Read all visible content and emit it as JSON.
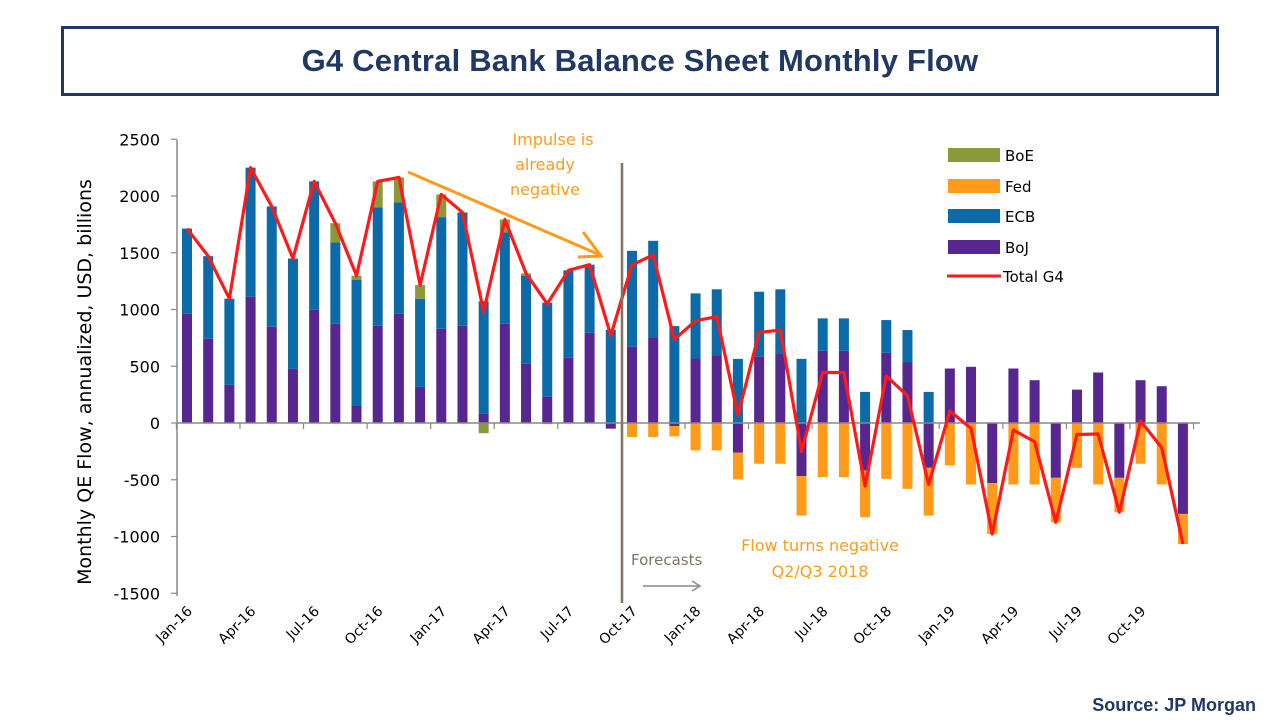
{
  "title": "G4 Central Bank Balance Sheet Monthly Flow",
  "source": "Source: JP Morgan",
  "colors": {
    "BoE": "#8A9A3B",
    "Fed": "#FF9A1A",
    "ECB": "#0D6AA8",
    "BoJ": "#57268F",
    "Total G4": "#FF1A1A",
    "title": "#1F3864",
    "annotation": "#FF9A1A",
    "forecast_line": "#7F7565"
  },
  "chart_data": {
    "type": "bar",
    "stacked": true,
    "title": "G4 Central Bank Balance Sheet Monthly Flow",
    "xlabel": "",
    "ylabel": "Monthly QE Flow, annualized, USD, billions",
    "ylim": [
      -1500,
      2500
    ],
    "yticks": [
      -1500,
      -1000,
      -500,
      0,
      500,
      1000,
      1500,
      2000,
      2500
    ],
    "grid": false,
    "legend_position": "top-right",
    "categories": [
      "Jan-16",
      "Feb-16",
      "Mar-16",
      "Apr-16",
      "May-16",
      "Jun-16",
      "Jul-16",
      "Aug-16",
      "Sep-16",
      "Oct-16",
      "Nov-16",
      "Dec-16",
      "Jan-17",
      "Feb-17",
      "Mar-17",
      "Apr-17",
      "May-17",
      "Jun-17",
      "Jul-17",
      "Aug-17",
      "Sep-17",
      "Oct-17",
      "Nov-17",
      "Dec-17",
      "Jan-18",
      "Feb-18",
      "Mar-18",
      "Apr-18",
      "May-18",
      "Jun-18",
      "Jul-18",
      "Aug-18",
      "Sep-18",
      "Oct-18",
      "Nov-18",
      "Dec-18",
      "Jan-19",
      "Feb-19",
      "Mar-19",
      "Apr-19",
      "May-19",
      "Jun-19",
      "Jul-19",
      "Aug-19",
      "Sep-19",
      "Oct-19",
      "Nov-19",
      "Dec-19"
    ],
    "xtick_labels": [
      "Jan-16",
      "Apr-16",
      "Jul-16",
      "Oct-16",
      "Jan-17",
      "Apr-17",
      "Jul-17",
      "Oct-17",
      "Jan-18",
      "Apr-18",
      "Jul-18",
      "Oct-18",
      "Jan-19",
      "Apr-19",
      "Jul-19",
      "Oct-19"
    ],
    "series": [
      {
        "name": "BoE",
        "values": [
          0,
          0,
          0,
          0,
          0,
          0,
          0,
          170,
          35,
          230,
          220,
          120,
          200,
          0,
          -90,
          115,
          20,
          -10,
          0,
          0,
          0,
          0,
          0,
          0,
          0,
          0,
          0,
          0,
          0,
          0,
          0,
          0,
          0,
          0,
          0,
          0,
          0,
          0,
          0,
          0,
          0,
          0,
          0,
          0,
          0,
          0,
          0,
          0
        ]
      },
      {
        "name": "Fed",
        "values": [
          0,
          0,
          0,
          0,
          0,
          0,
          0,
          0,
          0,
          0,
          0,
          0,
          0,
          0,
          0,
          0,
          0,
          0,
          0,
          0,
          0,
          -124,
          -124,
          -91,
          -241,
          -241,
          -235,
          -359,
          -359,
          -348,
          -477,
          -477,
          -412,
          -492,
          -580,
          -421,
          -374,
          -542,
          -448,
          -542,
          -542,
          -392,
          -395,
          -542,
          -303,
          -359,
          -542,
          -265
        ]
      },
      {
        "name": "ECB",
        "values": [
          750,
          728,
          759,
          1137,
          1060,
          972,
          1131,
          715,
          1113,
          1042,
          981,
          777,
          984,
          998,
          992,
          803,
          777,
          830,
          771,
          600,
          822,
          846,
          851,
          854,
          574,
          580,
          565,
          574,
          566,
          565,
          286,
          286,
          274,
          289,
          286,
          274,
          0,
          0,
          0,
          0,
          0,
          0,
          0,
          0,
          0,
          0,
          0,
          0
        ]
      },
      {
        "name": "BoJ",
        "values": [
          963,
          742,
          336,
          1113,
          848,
          477,
          998,
          875,
          150,
          857,
          963,
          318,
          830,
          857,
          80,
          875,
          521,
          230,
          574,
          795,
          -50,
          671,
          754,
          -27,
          568,
          598,
          -262,
          583,
          612,
          -468,
          636,
          636,
          -418,
          618,
          533,
          -395,
          480,
          495,
          -530,
          480,
          377,
          -483,
          294,
          445,
          -483,
          377,
          324,
          -801
        ]
      }
    ],
    "line_series": {
      "name": "Total G4",
      "note": "sum of the four series"
    },
    "annotations": {
      "impulse": [
        "Impulse is",
        "already",
        "negative"
      ],
      "forecasts": "Forecasts",
      "flow": [
        "Flow turns negative",
        "Q2/Q3 2018"
      ]
    }
  }
}
